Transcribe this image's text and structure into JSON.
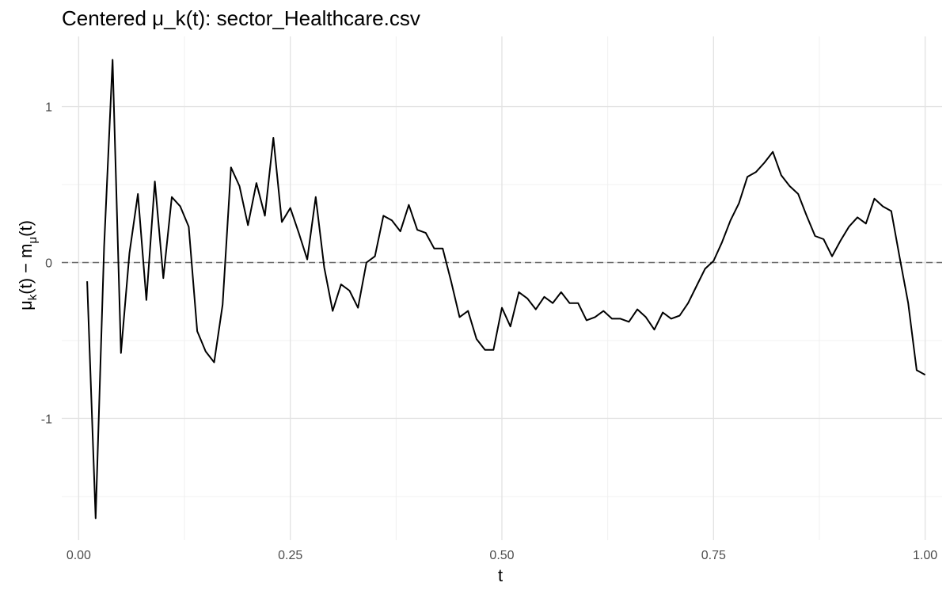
{
  "chart_data": {
    "type": "line",
    "title": "Centered μ_k(t): sector_Healthcare.csv",
    "xlabel": "t",
    "ylabel": {
      "parts": [
        "μ",
        "k",
        "(t) − m",
        "μ",
        "(t)"
      ]
    },
    "xlim": [
      -0.02,
      1.02
    ],
    "ylim": [
      -1.78,
      1.45
    ],
    "x_ticks": [
      0.0,
      0.25,
      0.5,
      0.75,
      1.0
    ],
    "x_tick_labels": [
      "0.00",
      "0.25",
      "0.50",
      "0.75",
      "1.00"
    ],
    "y_ticks": [
      -1,
      0,
      1
    ],
    "y_tick_labels": [
      "-1",
      "0",
      "1"
    ],
    "y_minor_ticks": [
      -1.5,
      -0.5,
      0.5
    ],
    "x_minor_ticks": [
      0.125,
      0.375,
      0.625,
      0.875
    ],
    "grid": true,
    "reference_line": {
      "y": 0,
      "style": "dashed",
      "color": "#666666"
    },
    "series": [
      {
        "color": "#000000",
        "x": [
          0.01,
          0.02,
          0.03,
          0.04,
          0.05,
          0.06,
          0.07,
          0.08,
          0.09,
          0.1,
          0.11,
          0.12,
          0.13,
          0.14,
          0.15,
          0.16,
          0.17,
          0.18,
          0.19,
          0.2,
          0.21,
          0.22,
          0.23,
          0.24,
          0.25,
          0.26,
          0.27,
          0.28,
          0.29,
          0.3,
          0.31,
          0.32,
          0.33,
          0.34,
          0.35,
          0.36,
          0.37,
          0.38,
          0.39,
          0.4,
          0.41,
          0.42,
          0.43,
          0.44,
          0.45,
          0.46,
          0.47,
          0.48,
          0.49,
          0.5,
          0.51,
          0.52,
          0.53,
          0.54,
          0.55,
          0.56,
          0.57,
          0.58,
          0.59,
          0.6,
          0.61,
          0.62,
          0.63,
          0.64,
          0.65,
          0.66,
          0.67,
          0.68,
          0.69,
          0.7,
          0.71,
          0.72,
          0.73,
          0.74,
          0.75,
          0.76,
          0.77,
          0.78,
          0.79,
          0.8,
          0.81,
          0.82,
          0.83,
          0.84,
          0.85,
          0.86,
          0.87,
          0.88,
          0.89,
          0.9,
          0.91,
          0.92,
          0.93,
          0.94,
          0.95,
          0.96,
          0.97,
          0.98,
          0.99,
          1.0
        ],
        "y": [
          -0.12,
          -1.64,
          0.1,
          1.3,
          -0.58,
          0.06,
          0.44,
          -0.24,
          0.52,
          -0.1,
          0.42,
          0.36,
          0.23,
          -0.44,
          -0.57,
          -0.64,
          -0.27,
          0.61,
          0.49,
          0.24,
          0.51,
          0.3,
          0.8,
          0.26,
          0.35,
          0.19,
          0.02,
          0.42,
          -0.03,
          -0.31,
          -0.14,
          -0.18,
          -0.29,
          -0.0,
          0.04,
          0.3,
          0.27,
          0.2,
          0.37,
          0.21,
          0.19,
          0.09,
          0.09,
          -0.12,
          -0.35,
          -0.31,
          -0.49,
          -0.56,
          -0.56,
          -0.29,
          -0.41,
          -0.19,
          -0.23,
          -0.3,
          -0.22,
          -0.26,
          -0.19,
          -0.26,
          -0.26,
          -0.37,
          -0.35,
          -0.31,
          -0.36,
          -0.36,
          -0.38,
          -0.3,
          -0.35,
          -0.43,
          -0.32,
          -0.36,
          -0.34,
          -0.26,
          -0.15,
          -0.04,
          0.01,
          0.13,
          0.27,
          0.38,
          0.55,
          0.58,
          0.64,
          0.71,
          0.56,
          0.49,
          0.44,
          0.3,
          0.17,
          0.15,
          0.04,
          0.14,
          0.23,
          0.29,
          0.25,
          0.41,
          0.36,
          0.33,
          0.03,
          -0.26,
          -0.69,
          -0.72
        ]
      }
    ]
  }
}
